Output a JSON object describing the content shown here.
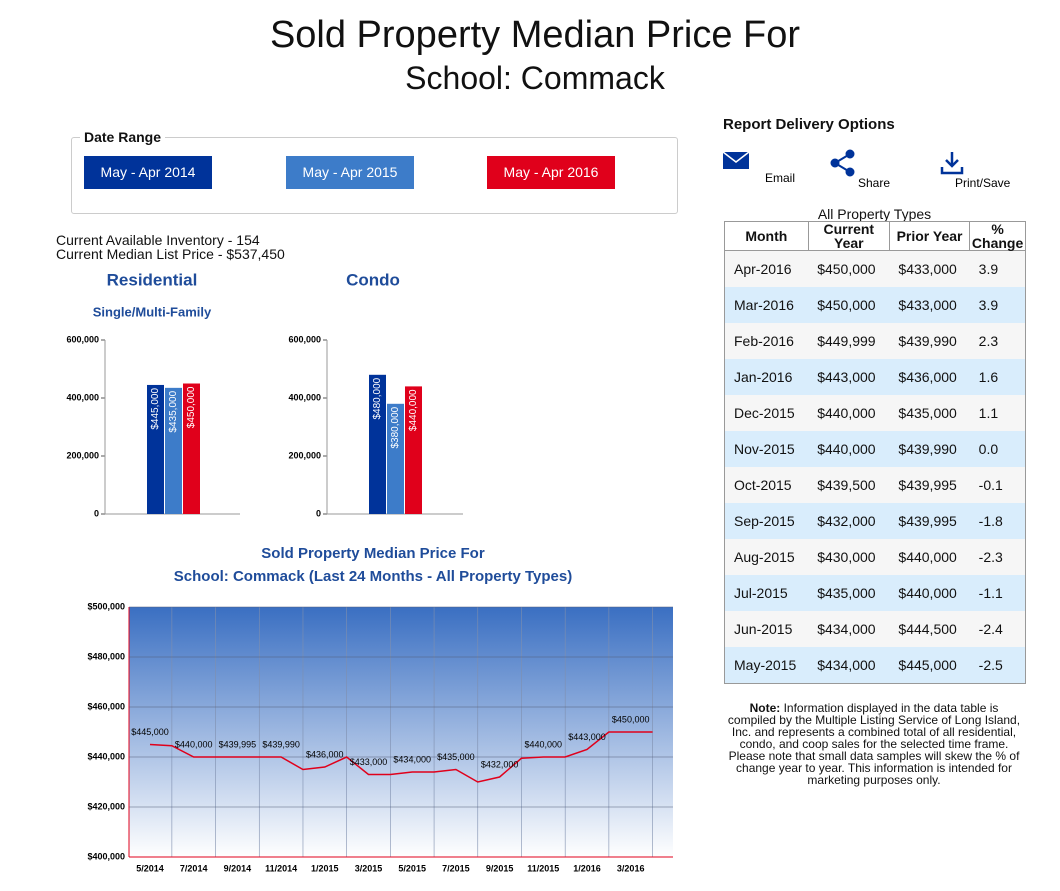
{
  "header": {
    "title": "Sold Property Median Price For",
    "subtitle": "School: Commack"
  },
  "date_range": {
    "legend": "Date Range",
    "buttons": [
      "May - Apr 2014",
      "May - Apr 2015",
      "May - Apr 2016"
    ]
  },
  "inventory": [
    "Current Available Inventory - 154",
    "Current Median List Price - $537,450"
  ],
  "delivery": {
    "title": "Report Delivery Options",
    "options": [
      "Email",
      "Share",
      "Print/Save"
    ]
  },
  "table": {
    "caption": "All Property Types",
    "columns": [
      "Month",
      "Current Year",
      "Prior Year",
      "% Change"
    ],
    "rows": [
      [
        "Apr-2016",
        "$450,000",
        "$433,000",
        "3.9"
      ],
      [
        "Mar-2016",
        "$450,000",
        "$433,000",
        "3.9"
      ],
      [
        "Feb-2016",
        "$449,999",
        "$439,990",
        "2.3"
      ],
      [
        "Jan-2016",
        "$443,000",
        "$436,000",
        "1.6"
      ],
      [
        "Dec-2015",
        "$440,000",
        "$435,000",
        "1.1"
      ],
      [
        "Nov-2015",
        "$440,000",
        "$439,990",
        "0.0"
      ],
      [
        "Oct-2015",
        "$439,500",
        "$439,995",
        "-0.1"
      ],
      [
        "Sep-2015",
        "$432,000",
        "$439,995",
        "-1.8"
      ],
      [
        "Aug-2015",
        "$430,000",
        "$440,000",
        "-2.3"
      ],
      [
        "Jul-2015",
        "$435,000",
        "$440,000",
        "-1.1"
      ],
      [
        "Jun-2015",
        "$434,000",
        "$444,500",
        "-2.4"
      ],
      [
        "May-2015",
        "$434,000",
        "$445,000",
        "-2.5"
      ]
    ]
  },
  "note": {
    "label": "Note:",
    "text": "Information displayed in the data table is compiled by the Multiple Listing Service of Long Island, Inc. and represents a combined total of all residential, condo, and coop sales for the selected time frame. Please note that small data samples will skew the % of change year to year.  This information is intended for marketing purposes only."
  },
  "chart_data": [
    {
      "type": "bar",
      "title": "Residential",
      "subtitle": "Single/Multi-Family",
      "values": [
        445000,
        435000,
        450000
      ],
      "value_labels": [
        "$445,000",
        "$435,000",
        "$450,000"
      ],
      "colors": [
        "#00339a",
        "#3d7cc9",
        "#e0001b"
      ],
      "ylim": [
        0,
        600000
      ],
      "yticks": [
        0,
        {
          "value": 200000,
          "label": "200,000"
        },
        {
          "value": 400000,
          "label": "400,000"
        },
        {
          "value": 600000,
          "label": "600,000"
        }
      ]
    },
    {
      "type": "bar",
      "title": "Condo",
      "values": [
        480000,
        380000,
        440000
      ],
      "value_labels": [
        "$480,000",
        "$380,000",
        "$440,000"
      ],
      "colors": [
        "#00339a",
        "#3d7cc9",
        "#e0001b"
      ],
      "ylim": [
        0,
        600000
      ],
      "yticks": [
        0,
        {
          "value": 200000,
          "label": "200,000"
        },
        {
          "value": 400000,
          "label": "400,000"
        },
        {
          "value": 600000,
          "label": "600,000"
        }
      ]
    },
    {
      "type": "line",
      "title": "Sold Property Median Price For",
      "subtitle": "School: Commack (Last 24 Months - All Property Types)",
      "categories": [
        "5/2014",
        null,
        "7/2014",
        null,
        "9/2014",
        null,
        "11/2014",
        null,
        "1/2015",
        null,
        "3/2015",
        null,
        "5/2015",
        null,
        "7/2015",
        null,
        "9/2015",
        null,
        "11/2015",
        null,
        "1/2016",
        null,
        "3/2016",
        null
      ],
      "values": [
        445000,
        444500,
        440000,
        440000,
        439995,
        439995,
        439990,
        435000,
        436000,
        439990,
        433000,
        433000,
        434000,
        434000,
        435000,
        430000,
        432000,
        439500,
        440000,
        440000,
        443000,
        449999,
        450000,
        450000
      ],
      "value_labels": [
        "$445,000",
        null,
        "$440,000",
        null,
        "$439,995",
        null,
        "$439,990",
        null,
        "$436,000",
        null,
        "$433,000",
        null,
        "$434,000",
        null,
        "$435,000",
        null,
        "$432,000",
        null,
        "$440,000",
        null,
        "$443,000",
        null,
        "$450,000",
        null
      ],
      "color": "#e0001b",
      "ylim": [
        400000,
        500000
      ],
      "yticks": [
        {
          "value": 400000,
          "label": "$400,000"
        },
        {
          "value": 420000,
          "label": "$420,000"
        },
        {
          "value": 440000,
          "label": "$440,000"
        },
        {
          "value": 460000,
          "label": "$460,000"
        },
        {
          "value": 480000,
          "label": "$480,000"
        },
        {
          "value": 500000,
          "label": "$500,000"
        }
      ],
      "grid": true
    }
  ]
}
